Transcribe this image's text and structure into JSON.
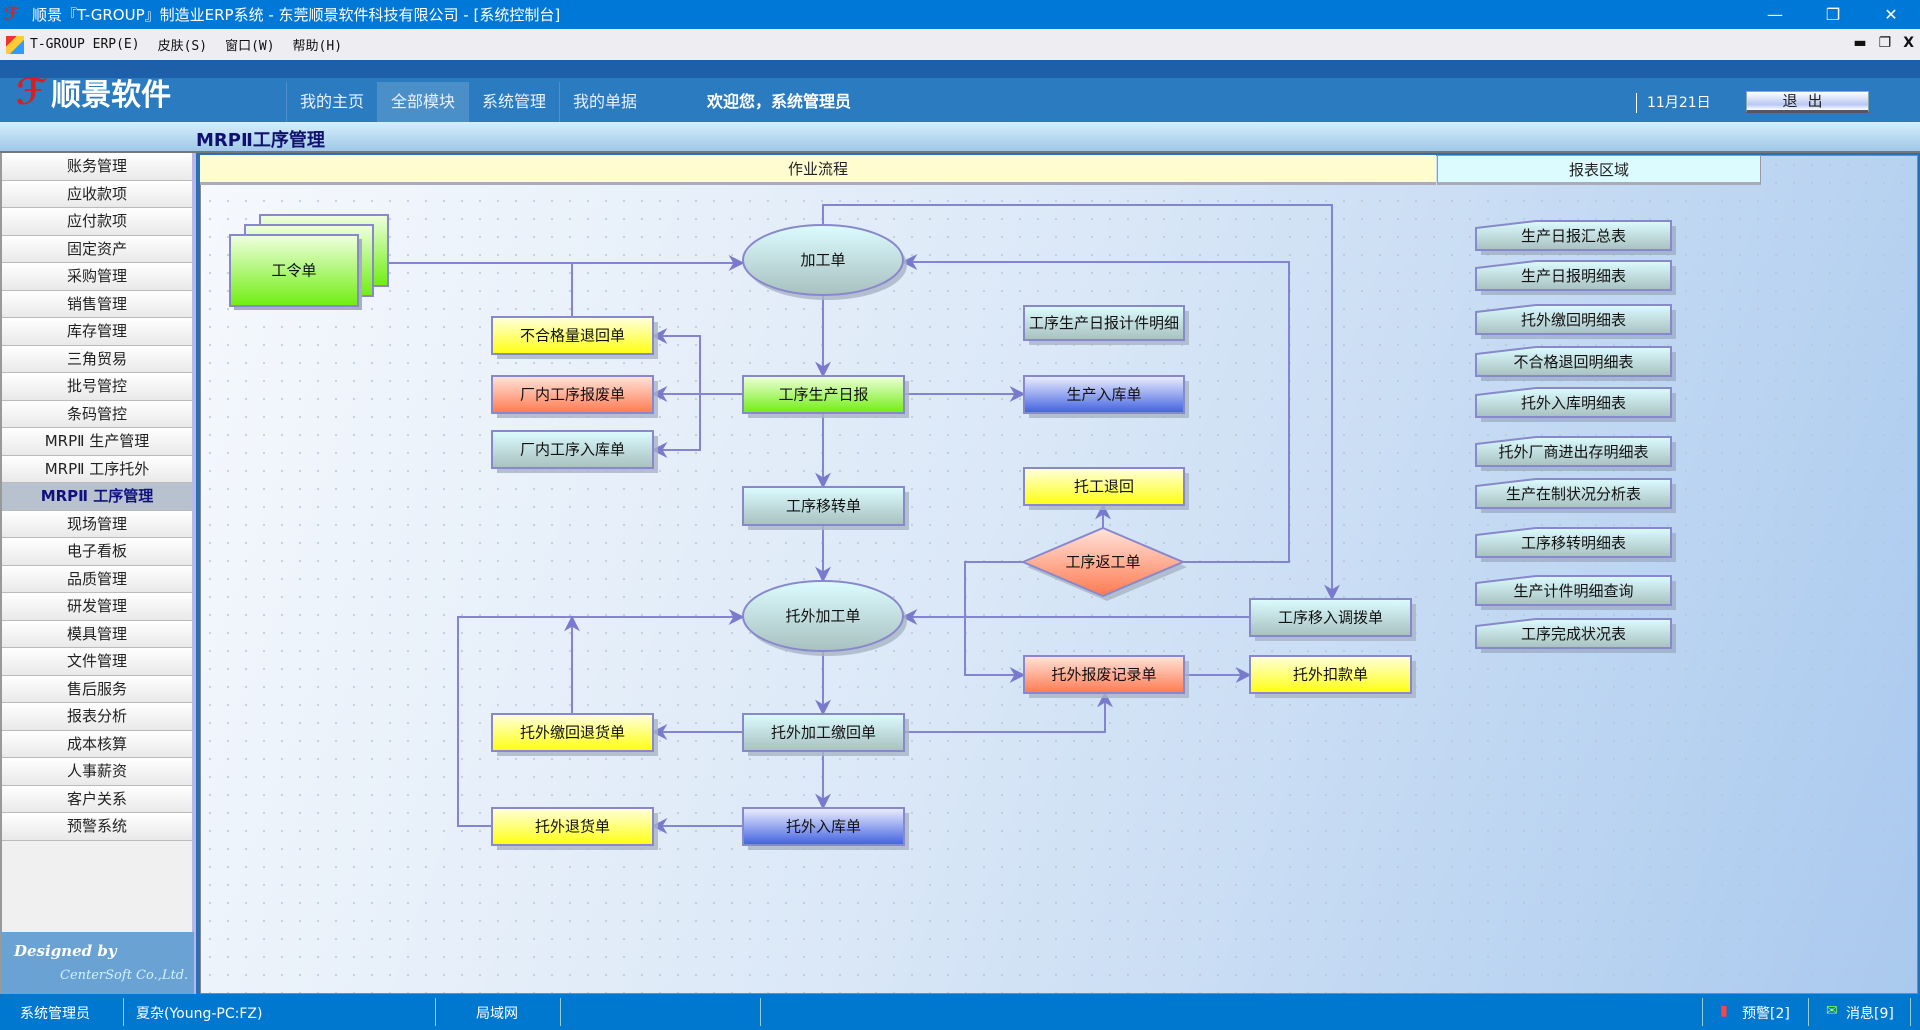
{
  "window": {
    "title": "顺景『T-GROUP』制造业ERP系统 - 东莞顺景软件科技有限公司 - [系统控制台]",
    "minimize": "—",
    "restore": "❐",
    "close": "✕"
  },
  "menu": [
    "T-GROUP ERP(E)",
    "皮肤(S)",
    "窗口(W)",
    "帮助(H)"
  ],
  "mdi": {
    "minimize": "▬",
    "restore": "❐",
    "close": "X"
  },
  "header": {
    "brand": "顺景软件",
    "tabs": [
      "我的主页",
      "全部模块",
      "系统管理",
      "我的单据"
    ],
    "active_tab": 1,
    "welcome": "欢迎您，系统管理员",
    "date": "11月21日",
    "exit": "退出"
  },
  "page_title": "MRPⅡ工序管理",
  "sidebar": {
    "items": [
      "账务管理",
      "应收款项",
      "应付款项",
      "固定资产",
      "采购管理",
      "销售管理",
      "库存管理",
      "三角贸易",
      "批号管控",
      "条码管控",
      "MRPⅡ 生产管理",
      "MRPⅡ 工序托外",
      "MRPⅡ 工序管理",
      "现场管理",
      "电子看板",
      "品质管理",
      "研发管理",
      "模具管理",
      "文件管理",
      "售后服务",
      "报表分析",
      "成本核算",
      "人事薪资",
      "客户关系",
      "预警系统"
    ],
    "active": 12,
    "footer_line1": "Designed by",
    "footer_line2": "CenterSoft Co.,Ltd."
  },
  "flow": {
    "header": "作业流程",
    "nodes": [
      "工令单",
      "加工单",
      "不合格量退回单",
      "厂内工序报废单",
      "厂内工序入库单",
      "工序生产日报",
      "工序生产日报计件明细",
      "生产入库单",
      "工序移转单",
      "托工退回",
      "工序返工单",
      "托外加工单",
      "工序移入调拨单",
      "托外报废记录单",
      "托外扣款单",
      "托外缴回退货单",
      "托外加工缴回单",
      "托外退货单",
      "托外入库单"
    ]
  },
  "reports": {
    "header": "报表区域",
    "items": [
      "生产日报汇总表",
      "生产日报明细表",
      "托外缴回明细表",
      "不合格退回明细表",
      "托外入库明细表",
      "托外厂商进出存明细表",
      "生产在制状况分析表",
      "工序移转明细表",
      "生产计件明细查询",
      "工序完成状况表"
    ]
  },
  "colors": {
    "green": "#80f020",
    "yellow": "#ffff20",
    "red": "#ff8060",
    "blue": "#5070e0",
    "gray": "#b8d0d0",
    "edge": "#8080d0"
  },
  "status": {
    "user": "系统管理员",
    "machine": "夏杂(Young-PC:FZ)",
    "network": "局域网",
    "alerts": "预警[2]",
    "messages": "消息[9]"
  }
}
